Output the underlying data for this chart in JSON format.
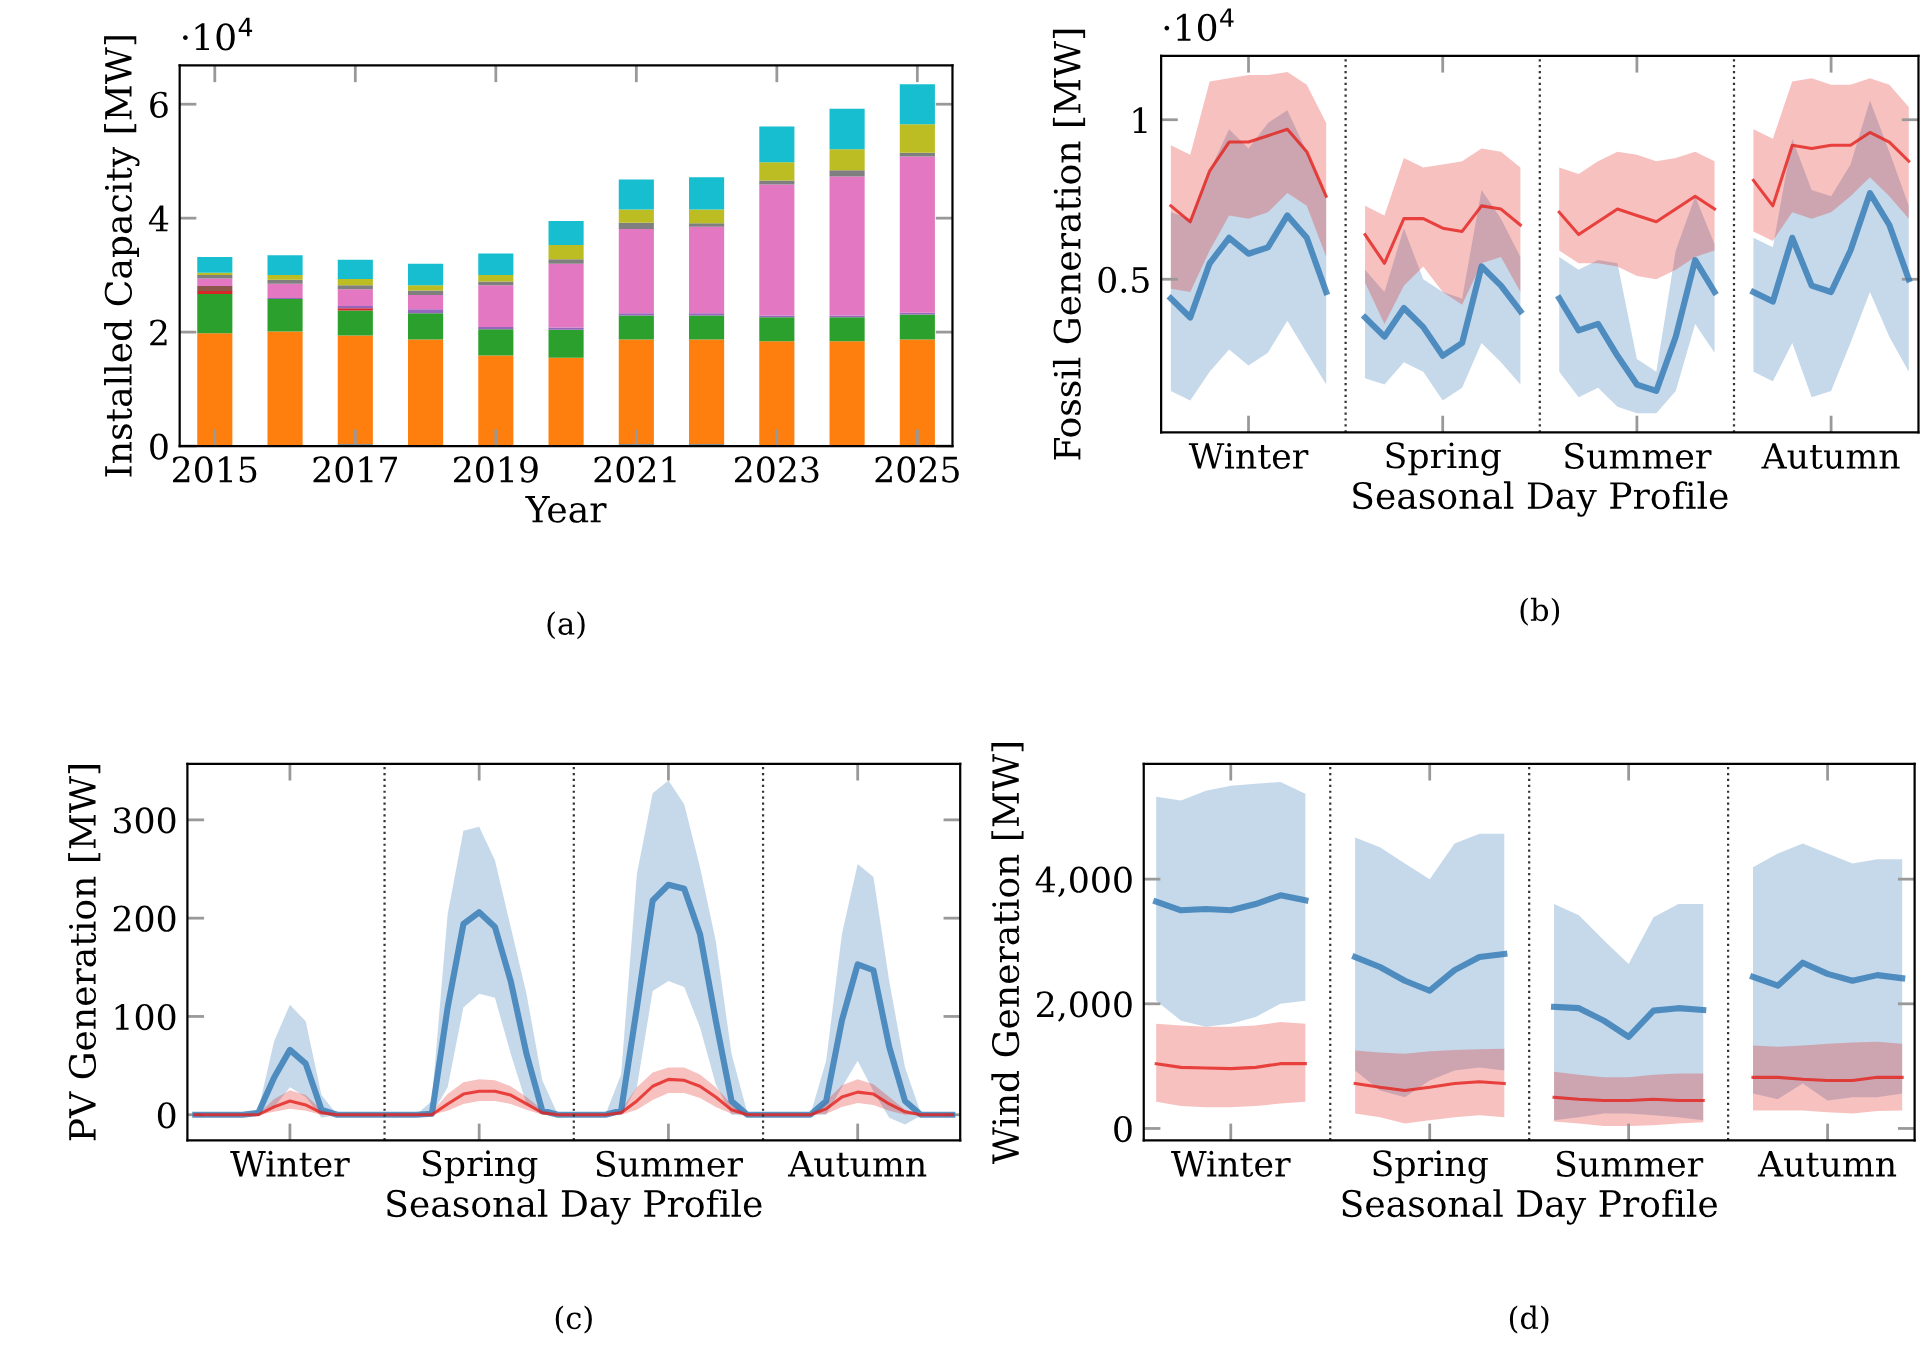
{
  "chart_data": [
    {
      "type": "bar",
      "stacked": true,
      "xlabel": "Year",
      "ylabel": "Installed Capacity [MW]",
      "x": [
        2015,
        2016,
        2017,
        2018,
        2019,
        2020,
        2021,
        2022,
        2023,
        2024,
        2025
      ],
      "xlim": [
        2014.5,
        2025.5
      ],
      "xticks": [
        2015,
        2017,
        2019,
        2021,
        2023,
        2025
      ],
      "ylim": [
        0,
        6.68
      ],
      "yticks": [
        0,
        2,
        4,
        6
      ],
      "annotations": [
        "·10$^{4}$",
        "(a)"
      ],
      "series": [
        {
          "color": "#1f77b4",
          "values": [
            0,
            0,
            0.03,
            0,
            0,
            0,
            0.03,
            0.03,
            0,
            0,
            0
          ]
        },
        {
          "color": "#ff7f0e",
          "values": [
            1.98,
            2.01,
            1.91,
            1.87,
            1.59,
            1.55,
            1.84,
            1.84,
            1.84,
            1.84,
            1.87
          ]
        },
        {
          "color": "#2ca02c",
          "values": [
            0.69,
            0.57,
            0.44,
            0.46,
            0.46,
            0.49,
            0.42,
            0.42,
            0.42,
            0.42,
            0.44
          ]
        },
        {
          "color": "#d62728",
          "values": [
            0.05,
            0,
            0.04,
            0,
            0,
            0,
            0,
            0,
            0,
            0,
            0
          ]
        },
        {
          "color": "#9467bd",
          "values": [
            0,
            0.02,
            0.04,
            0.07,
            0.04,
            0.04,
            0.04,
            0.04,
            0.03,
            0.03,
            0.03
          ]
        },
        {
          "color": "#8c564b",
          "values": [
            0.09,
            0,
            0,
            0,
            0,
            0,
            0,
            0,
            0,
            0,
            0
          ]
        },
        {
          "color": "#e377c2",
          "values": [
            0.13,
            0.25,
            0.29,
            0.25,
            0.73,
            1.12,
            1.48,
            1.52,
            2.3,
            2.44,
            2.74
          ]
        },
        {
          "color": "#7f7f7f",
          "values": [
            0.06,
            0.07,
            0.07,
            0.08,
            0.07,
            0.08,
            0.11,
            0.06,
            0.07,
            0.11,
            0.07
          ]
        },
        {
          "color": "#bcbd22",
          "values": [
            0.04,
            0.08,
            0.11,
            0.09,
            0.11,
            0.25,
            0.23,
            0.24,
            0.32,
            0.37,
            0.5
          ]
        },
        {
          "color": "#17becf",
          "values": [
            0.28,
            0.35,
            0.34,
            0.38,
            0.38,
            0.42,
            0.53,
            0.57,
            0.63,
            0.71,
            0.7
          ]
        }
      ]
    },
    {
      "type": "line",
      "xlabel": "Seasonal Day Profile",
      "ylabel": "Fossil Generation [MW]",
      "categories": [
        null,
        null,
        null,
        null,
        "Winter",
        null,
        null,
        null,
        null,
        null,
        null,
        null,
        null,
        null,
        "Spring",
        null,
        null,
        null,
        null,
        null,
        null,
        null,
        null,
        null,
        "Summer",
        null,
        null,
        null,
        null,
        null,
        null,
        null,
        null,
        null,
        "Autumn",
        null,
        null,
        null,
        null
      ],
      "ylim": [
        0.02,
        1.2
      ],
      "yticks": [
        0.5,
        1
      ],
      "grid": "x",
      "annotations": [
        "·10$^{4}$",
        "(b)"
      ],
      "series": [
        {
          "color": "#2f78b5",
          "values": [
            0.44,
            0.38,
            0.55,
            0.63,
            0.58,
            0.6,
            0.7,
            0.63,
            0.46,
            null,
            0.38,
            0.32,
            0.41,
            0.35,
            0.26,
            0.3,
            0.54,
            0.48,
            0.4,
            null,
            0.44,
            0.34,
            0.36,
            0.26,
            0.17,
            0.15,
            0.32,
            0.56,
            0.46,
            null,
            0.46,
            0.43,
            0.63,
            0.48,
            0.46,
            0.59,
            0.77,
            0.67,
            0.5
          ],
          "upper": [
            0.71,
            0.69,
            0.84,
            0.97,
            0.91,
            0.99,
            1.03,
            0.9,
            0.76,
            null,
            0.53,
            0.46,
            0.66,
            0.5,
            0.46,
            0.44,
            0.78,
            0.69,
            0.57,
            null,
            0.57,
            0.53,
            0.56,
            0.55,
            0.25,
            0.21,
            0.59,
            0.76,
            0.61,
            null,
            0.63,
            0.6,
            0.94,
            0.78,
            0.76,
            0.86,
            1.06,
            0.9,
            0.73
          ],
          "lower": [
            0.15,
            0.12,
            0.21,
            0.28,
            0.23,
            0.27,
            0.37,
            0.27,
            0.17,
            null,
            0.19,
            0.17,
            0.24,
            0.21,
            0.12,
            0.16,
            0.3,
            0.24,
            0.17,
            null,
            0.21,
            0.13,
            0.16,
            0.1,
            0.08,
            0.08,
            0.15,
            0.36,
            0.27,
            null,
            0.21,
            0.18,
            0.3,
            0.13,
            0.15,
            0.3,
            0.46,
            0.32,
            0.21
          ]
        },
        {
          "color": "#e3211c",
          "values": [
            0.73,
            0.68,
            0.84,
            0.93,
            0.93,
            0.95,
            0.97,
            0.9,
            0.76,
            null,
            0.64,
            0.55,
            0.69,
            0.69,
            0.66,
            0.65,
            0.73,
            0.72,
            0.67,
            null,
            0.71,
            0.64,
            0.68,
            0.72,
            0.7,
            0.68,
            0.72,
            0.76,
            0.72,
            null,
            0.81,
            0.73,
            0.92,
            0.91,
            0.92,
            0.92,
            0.96,
            0.93,
            0.87
          ],
          "upper": [
            0.92,
            0.89,
            1.12,
            1.13,
            1.14,
            1.14,
            1.15,
            1.11,
            0.99,
            null,
            0.73,
            0.7,
            0.88,
            0.85,
            0.86,
            0.87,
            0.91,
            0.9,
            0.85,
            null,
            0.85,
            0.83,
            0.87,
            0.9,
            0.89,
            0.87,
            0.88,
            0.9,
            0.87,
            null,
            0.97,
            0.94,
            1.12,
            1.13,
            1.11,
            1.11,
            1.13,
            1.11,
            1.04
          ],
          "lower": [
            0.47,
            0.46,
            0.59,
            0.7,
            0.69,
            0.71,
            0.77,
            0.73,
            0.57,
            null,
            0.49,
            0.36,
            0.48,
            0.54,
            0.46,
            0.42,
            0.55,
            0.57,
            0.46,
            null,
            0.59,
            0.55,
            0.55,
            0.54,
            0.51,
            0.5,
            0.53,
            0.57,
            0.59,
            null,
            0.65,
            0.62,
            0.71,
            0.69,
            0.71,
            0.76,
            0.82,
            0.76,
            0.69
          ]
        }
      ]
    },
    {
      "type": "line",
      "xlabel": "Seasonal Day Profile",
      "ylabel": "PV Generation [MW]",
      "categories": [
        null,
        null,
        null,
        null,
        null,
        null,
        "Winter",
        null,
        null,
        null,
        null,
        null,
        null,
        null,
        null,
        null,
        null,
        null,
        "Spring",
        null,
        null,
        null,
        null,
        null,
        null,
        null,
        null,
        null,
        null,
        null,
        "Summer",
        null,
        null,
        null,
        null,
        null,
        null,
        null,
        null,
        null,
        null,
        null,
        "Autumn",
        null,
        null,
        null,
        null,
        null,
        null
      ],
      "ylim": [
        -26,
        357
      ],
      "yticks": [
        0,
        100,
        200,
        300
      ],
      "grid": "x",
      "annotations": [
        "(c)"
      ],
      "series": [
        {
          "color": "#2f78b5",
          "values": [
            0,
            0,
            0,
            0,
            2,
            38,
            66,
            52,
            5,
            0,
            0,
            0,
            0,
            0,
            0,
            1,
            109,
            194,
            206,
            191,
            136,
            62,
            4,
            0,
            0,
            0,
            0,
            4,
            109,
            218,
            234,
            230,
            184,
            96,
            14,
            0,
            0,
            0,
            0,
            0,
            14,
            96,
            153,
            147,
            69,
            14,
            0,
            0,
            0
          ],
          "upper": [
            0,
            0,
            0,
            0,
            5,
            75,
            112,
            95,
            20,
            0,
            0,
            0,
            0,
            0,
            0,
            14,
            204,
            289,
            293,
            259,
            191,
            123,
            35,
            0,
            0,
            0,
            0,
            41,
            245,
            327,
            340,
            316,
            252,
            177,
            62,
            2,
            0,
            0,
            0,
            0,
            55,
            184,
            255,
            242,
            136,
            48,
            2,
            0,
            0
          ],
          "lower": [
            0,
            0,
            0,
            0,
            0,
            8,
            28,
            18,
            -3,
            0,
            0,
            0,
            0,
            0,
            0,
            0,
            28,
            109,
            123,
            119,
            62,
            11,
            0,
            0,
            0,
            0,
            0,
            0,
            28,
            126,
            136,
            130,
            89,
            31,
            0,
            0,
            0,
            0,
            0,
            0,
            0,
            28,
            55,
            24,
            -3,
            -10,
            -1,
            0,
            0
          ]
        },
        {
          "color": "#e3211c",
          "values": [
            0,
            0,
            0,
            0,
            0,
            8,
            14,
            10,
            2,
            0,
            0,
            0,
            0,
            0,
            0,
            0,
            11,
            21,
            24,
            24,
            20,
            11,
            2,
            0,
            0,
            0,
            0,
            2,
            14,
            29,
            36,
            35,
            29,
            18,
            5,
            0,
            0,
            0,
            0,
            0,
            6,
            18,
            23,
            21,
            11,
            3,
            0,
            0,
            0
          ],
          "upper": [
            0,
            0,
            0,
            0,
            1,
            16,
            25,
            20,
            5,
            0,
            0,
            0,
            0,
            0,
            0,
            3,
            21,
            33,
            36,
            35,
            29,
            18,
            5,
            0,
            0,
            0,
            0,
            5,
            28,
            43,
            48,
            48,
            41,
            28,
            11,
            0,
            0,
            0,
            0,
            0,
            14,
            30,
            36,
            31,
            18,
            5,
            0,
            0,
            0
          ],
          "lower": [
            0,
            0,
            0,
            0,
            0,
            3,
            6,
            4,
            0,
            0,
            0,
            0,
            0,
            0,
            0,
            0,
            4,
            11,
            14,
            14,
            11,
            5,
            0,
            0,
            0,
            0,
            0,
            0,
            5,
            15,
            22,
            22,
            17,
            8,
            1,
            0,
            0,
            0,
            0,
            0,
            1,
            8,
            12,
            10,
            4,
            0,
            0,
            0,
            0
          ]
        }
      ]
    },
    {
      "type": "line",
      "xlabel": "Seasonal Day Profile",
      "ylabel": "Wind Generation [MW]",
      "categories": [
        null,
        null,
        null,
        "Winter",
        null,
        null,
        null,
        null,
        null,
        null,
        null,
        "Spring",
        null,
        null,
        null,
        null,
        null,
        null,
        null,
        "Summer",
        null,
        null,
        null,
        null,
        null,
        null,
        null,
        "Autumn",
        null,
        null,
        null
      ],
      "ylim": [
        -190,
        5850
      ],
      "yticks": [
        0,
        {
          "value": 2000,
          "label": "2,000"
        },
        {
          "value": 4000,
          "label": "4,000"
        }
      ],
      "grid": "x",
      "annotations": [
        "(d)"
      ],
      "series": [
        {
          "color": "#2f78b5",
          "values": [
            3640,
            3500,
            3520,
            3500,
            3600,
            3740,
            3660,
            null,
            2750,
            2590,
            2370,
            2210,
            2540,
            2750,
            2800,
            null,
            1950,
            1930,
            1730,
            1470,
            1890,
            1930,
            1900,
            null,
            2430,
            2290,
            2660,
            2480,
            2370,
            2460,
            2410
          ],
          "upper": [
            5320,
            5260,
            5420,
            5500,
            5530,
            5560,
            5370,
            null,
            4670,
            4510,
            4250,
            4000,
            4570,
            4730,
            4730,
            null,
            3600,
            3420,
            3020,
            2640,
            3390,
            3600,
            3600,
            null,
            4190,
            4410,
            4570,
            4410,
            4250,
            4320,
            4320
          ],
          "lower": [
            2050,
            1730,
            1630,
            1680,
            1790,
            2000,
            2050,
            null,
            930,
            610,
            500,
            770,
            930,
            980,
            930,
            null,
            130,
            180,
            240,
            240,
            210,
            180,
            130,
            null,
            560,
            470,
            720,
            450,
            500,
            500,
            560
          ]
        },
        {
          "color": "#e3211c",
          "values": [
            1040,
            980,
            970,
            960,
            980,
            1040,
            1040,
            null,
            720,
            660,
            610,
            660,
            720,
            750,
            720,
            null,
            500,
            470,
            450,
            450,
            470,
            450,
            450,
            null,
            820,
            820,
            790,
            770,
            770,
            820,
            820
          ],
          "upper": [
            1680,
            1650,
            1630,
            1630,
            1650,
            1710,
            1680,
            null,
            1250,
            1220,
            1200,
            1240,
            1260,
            1270,
            1280,
            null,
            910,
            860,
            820,
            820,
            860,
            880,
            880,
            null,
            1330,
            1310,
            1330,
            1360,
            1380,
            1390,
            1360
          ],
          "lower": [
            430,
            360,
            340,
            340,
            360,
            400,
            430,
            null,
            240,
            180,
            80,
            130,
            180,
            210,
            180,
            null,
            110,
            80,
            40,
            40,
            50,
            80,
            100,
            null,
            290,
            290,
            290,
            260,
            240,
            280,
            290
          ]
        }
      ]
    }
  ]
}
